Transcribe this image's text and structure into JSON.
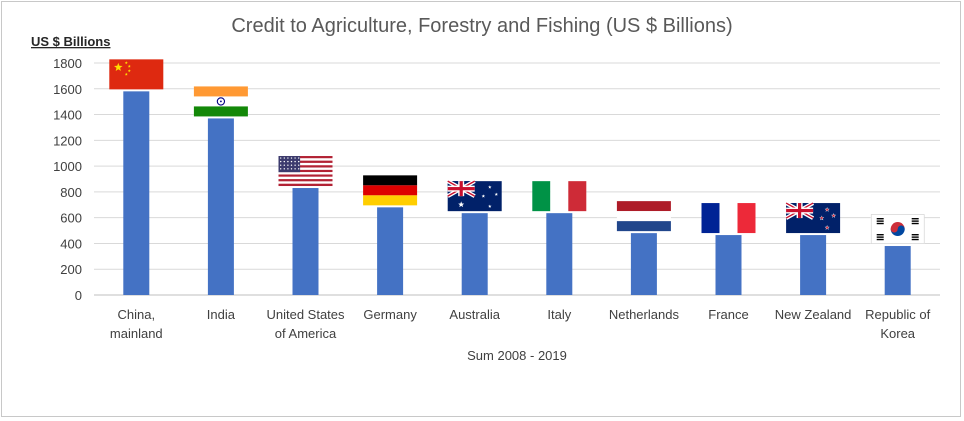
{
  "chart_data": {
    "type": "bar",
    "title": "Credit to Agriculture, Forestry and Fishing (US $ Billions)",
    "ylabel": "US $ Billions",
    "xlabel": "Sum 2008 - 2019",
    "ylim": [
      0,
      1800
    ],
    "yticks": [
      0,
      200,
      400,
      600,
      800,
      1000,
      1200,
      1400,
      1600,
      1800
    ],
    "grid": true,
    "bar_color": "#4472c4",
    "categories": [
      [
        "China,",
        "mainland"
      ],
      [
        "India"
      ],
      [
        "United States",
        "of America"
      ],
      [
        "Germany"
      ],
      [
        "Australia"
      ],
      [
        "Italy"
      ],
      [
        "Netherlands"
      ],
      [
        "France"
      ],
      [
        "New Zealand"
      ],
      [
        "Republic of",
        "Korea"
      ]
    ],
    "values": [
      1580,
      1370,
      830,
      680,
      635,
      635,
      480,
      465,
      465,
      380
    ],
    "flags": [
      "china-flag-icon",
      "india-flag-icon",
      "usa-flag-icon",
      "germany-flag-icon",
      "australia-flag-icon",
      "italy-flag-icon",
      "netherlands-flag-icon",
      "france-flag-icon",
      "new-zealand-flag-icon",
      "south-korea-flag-icon"
    ]
  }
}
